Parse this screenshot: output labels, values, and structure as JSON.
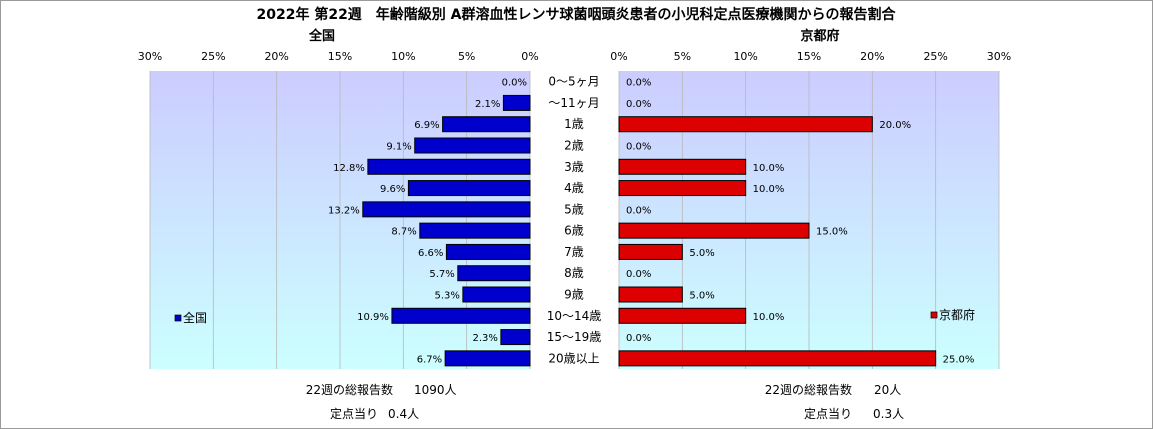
{
  "title": "2022年 第22週　年齢階級別 A群溶血性レンサ球菌咽頭炎患者の小児科定点医療機関からの報告割合",
  "colors": {
    "national": "#0000cc",
    "kyoto": "#dd0000",
    "plot_bg_top": "#ccccff",
    "plot_bg_bottom": "#ccffff"
  },
  "chart_data": [
    {
      "type": "bar",
      "orientation": "horizontal",
      "direction": "reversed",
      "title": "全国",
      "legend": "全国",
      "legend_position": "left",
      "xlim": [
        0,
        30
      ],
      "ticks": [
        "30%",
        "25%",
        "20%",
        "15%",
        "10%",
        "5%",
        "0%"
      ],
      "categories": [
        "0～5ヶ月",
        "～11ヶ月",
        "1歳",
        "2歳",
        "3歳",
        "4歳",
        "5歳",
        "6歳",
        "7歳",
        "8歳",
        "9歳",
        "10～14歳",
        "15～19歳",
        "20歳以上"
      ],
      "values": [
        0.0,
        2.1,
        6.9,
        9.1,
        12.8,
        9.6,
        13.2,
        8.7,
        6.6,
        5.7,
        5.3,
        10.9,
        2.3,
        6.7
      ],
      "labels": [
        "0.0%",
        "2.1%",
        "6.9%",
        "9.1%",
        "12.8%",
        "9.6%",
        "13.2%",
        "8.7%",
        "6.6%",
        "5.7%",
        "5.3%",
        "10.9%",
        "2.3%",
        "6.7%"
      ]
    },
    {
      "type": "bar",
      "orientation": "horizontal",
      "title": "京都府",
      "legend": "京都府",
      "legend_position": "right",
      "xlim": [
        0,
        30
      ],
      "ticks": [
        "0%",
        "5%",
        "10%",
        "15%",
        "20%",
        "25%",
        "30%"
      ],
      "categories": [
        "0～5ヶ月",
        "～11ヶ月",
        "1歳",
        "2歳",
        "3歳",
        "4歳",
        "5歳",
        "6歳",
        "7歳",
        "8歳",
        "9歳",
        "10～14歳",
        "15～19歳",
        "20歳以上"
      ],
      "values": [
        0.0,
        0.0,
        20.0,
        0.0,
        10.0,
        10.0,
        0.0,
        15.0,
        5.0,
        0.0,
        5.0,
        10.0,
        0.0,
        25.0
      ],
      "labels": [
        "0.0%",
        "0.0%",
        "20.0%",
        "0.0%",
        "10.0%",
        "10.0%",
        "0.0%",
        "15.0%",
        "5.0%",
        "0.0%",
        "5.0%",
        "10.0%",
        "0.0%",
        "25.0%"
      ]
    }
  ],
  "footer": {
    "national_total_label": "22週の総報告数",
    "national_total_value": "1090人",
    "national_per_label": "定点当り",
    "national_per_value": "0.4人",
    "kyoto_total_label": "22週の総報告数",
    "kyoto_total_value": "20人",
    "kyoto_per_label": "定点当り",
    "kyoto_per_value": "0.3人"
  }
}
